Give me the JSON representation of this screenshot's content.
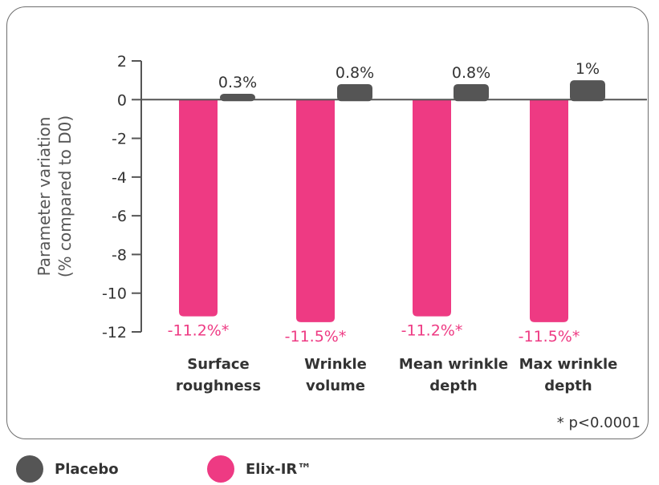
{
  "chart_data": {
    "type": "bar",
    "ylabel_line1": "Parameter variation",
    "ylabel_line2": "(% compared to D0)",
    "ylim": [
      -12,
      2
    ],
    "yticks": [
      2,
      0,
      -2,
      -4,
      -6,
      -8,
      -10,
      -12
    ],
    "categories": [
      [
        "Surface",
        "roughness"
      ],
      [
        "Wrinkle",
        "volume"
      ],
      [
        "Mean wrinkle",
        "depth"
      ],
      [
        "Max wrinkle",
        "depth"
      ]
    ],
    "series": [
      {
        "name": "Elix-IR™",
        "color": "#ee3a83",
        "values": [
          -11.2,
          -11.5,
          -11.2,
          -11.5
        ],
        "labels": [
          "-11.2%*",
          "-11.5%*",
          "-11.2%*",
          "-11.5%*"
        ]
      },
      {
        "name": "Placebo",
        "color": "#555555",
        "values": [
          0.3,
          0.8,
          0.8,
          1.0
        ],
        "labels": [
          "0.3%",
          "0.8%",
          "0.8%",
          "1%"
        ]
      }
    ],
    "legend_position": "bottom",
    "footnote": "* p<0.0001"
  },
  "legend": [
    {
      "label": "Placebo",
      "color": "#555555"
    },
    {
      "label": "Elix-IR™",
      "color": "#ee3a83"
    }
  ]
}
